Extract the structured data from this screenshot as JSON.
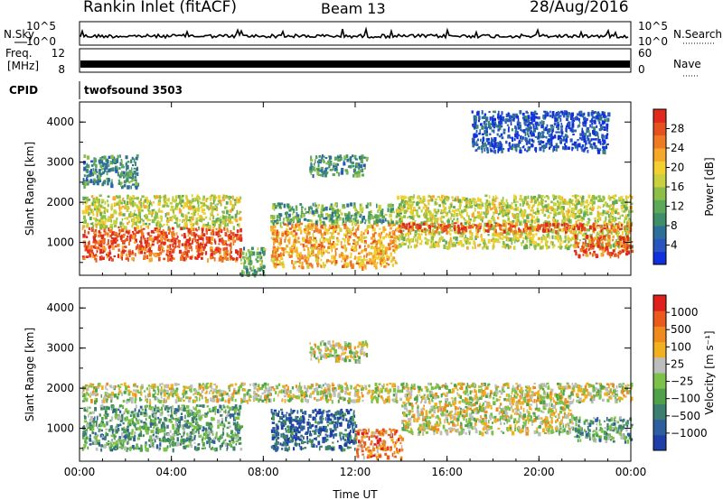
{
  "header": {
    "station": "Rankin Inlet (fitACF)",
    "beam": "Beam 13",
    "date": "28/Aug/2016"
  },
  "top_panels": {
    "nsky_label": "N.Sky",
    "nsky_ticks": [
      "10^5",
      "10^0"
    ],
    "nsearch_label": "N.Search",
    "nsearch_ticks": [
      "10^5",
      "10^0"
    ],
    "freq_label_1": "Freq.",
    "freq_label_2": "[MHz]",
    "freq_ticks": [
      "12",
      "8"
    ],
    "nave_label": "Nave",
    "nave_ticks": [
      "60",
      "0"
    ],
    "cpid_label": "CPID",
    "cpid_value": "twofsound 3503"
  },
  "chart_data": [
    {
      "type": "heatmap",
      "title": "",
      "xlabel": "",
      "ylabel": "Slant Range [km]",
      "x_ticks": [
        "00:00",
        "04:00",
        "08:00",
        "12:00",
        "16:00",
        "20:00",
        "00:00"
      ],
      "y_ticks": [
        "1000",
        "2000",
        "3000",
        "4000"
      ],
      "xlim": [
        0,
        24
      ],
      "ylim": [
        180,
        4500
      ],
      "colorbar": {
        "label": "Power [dB]",
        "ticks": [
          "4",
          "8",
          "12",
          "16",
          "20",
          "24",
          "28"
        ],
        "colors": [
          "#1030e0",
          "#2a55c0",
          "#2e6f9a",
          "#3f8e6a",
          "#5ea85a",
          "#8bbf48",
          "#c9d23e",
          "#f2d030",
          "#f5a82a",
          "#ef7a24",
          "#e5521f",
          "#e02a1c"
        ]
      },
      "echo_regions": [
        {
          "t0": 0.1,
          "t1": 7.0,
          "r0": 600,
          "r1": 1400,
          "level": 10
        },
        {
          "t0": 0.1,
          "t1": 7.0,
          "r0": 1400,
          "r1": 2200,
          "level": 6
        },
        {
          "t0": 0.1,
          "t1": 2.5,
          "r0": 2400,
          "r1": 3200,
          "level": 3
        },
        {
          "t0": 7.0,
          "t1": 8.0,
          "r0": 200,
          "r1": 900,
          "level": 4
        },
        {
          "t0": 8.3,
          "t1": 13.8,
          "r0": 400,
          "r1": 1500,
          "level": 8
        },
        {
          "t0": 8.3,
          "t1": 14.0,
          "r0": 1500,
          "r1": 2000,
          "level": 4
        },
        {
          "t0": 10.0,
          "t1": 12.5,
          "r0": 2700,
          "r1": 3200,
          "level": 3
        },
        {
          "t0": 13.8,
          "t1": 24.0,
          "r0": 900,
          "r1": 2200,
          "level": 6
        },
        {
          "t0": 13.8,
          "t1": 24.0,
          "r0": 1300,
          "r1": 1500,
          "level": 10
        },
        {
          "t0": 21.5,
          "t1": 24.0,
          "r0": 700,
          "r1": 1200,
          "level": 10
        },
        {
          "t0": 17.0,
          "t1": 23.0,
          "r0": 3300,
          "r1": 4300,
          "level": 1
        }
      ]
    },
    {
      "type": "heatmap",
      "title": "",
      "xlabel": "Time UT",
      "ylabel": "Slant Range [km]",
      "x_ticks": [
        "00:00",
        "04:00",
        "08:00",
        "12:00",
        "16:00",
        "20:00",
        "00:00"
      ],
      "y_ticks": [
        "1000",
        "2000",
        "3000",
        "4000"
      ],
      "xlim": [
        0,
        24
      ],
      "ylim": [
        180,
        4500
      ],
      "colorbar": {
        "label": "Velocity [m s⁻¹]",
        "ticks": [
          "1000",
          "500",
          "100",
          "25",
          "−25",
          "−100",
          "−500",
          "−1000"
        ],
        "colors": [
          "#1e3fa8",
          "#2d5fa0",
          "#3d7f6e",
          "#4fa24a",
          "#7cc24a",
          "#bdbdbd",
          "#f0b020",
          "#ef8a1c",
          "#ea5a1c",
          "#e0201c"
        ]
      },
      "echo_regions": [
        {
          "t0": 0.1,
          "t1": 7.0,
          "r0": 500,
          "r1": 1600,
          "level": 3
        },
        {
          "t0": 0.1,
          "t1": 24.0,
          "r0": 1700,
          "r1": 2150,
          "level": 5
        },
        {
          "t0": 8.3,
          "t1": 12.0,
          "r0": 500,
          "r1": 1500,
          "level": 1
        },
        {
          "t0": 12.0,
          "t1": 14.0,
          "r0": 300,
          "r1": 1000,
          "level": 7
        },
        {
          "t0": 10.0,
          "t1": 12.5,
          "r0": 2700,
          "r1": 3200,
          "level": 5
        },
        {
          "t0": 14.0,
          "t1": 21.5,
          "r0": 900,
          "r1": 1700,
          "level": 5
        },
        {
          "t0": 21.5,
          "t1": 24.0,
          "r0": 700,
          "r1": 1300,
          "level": 3
        }
      ]
    }
  ]
}
